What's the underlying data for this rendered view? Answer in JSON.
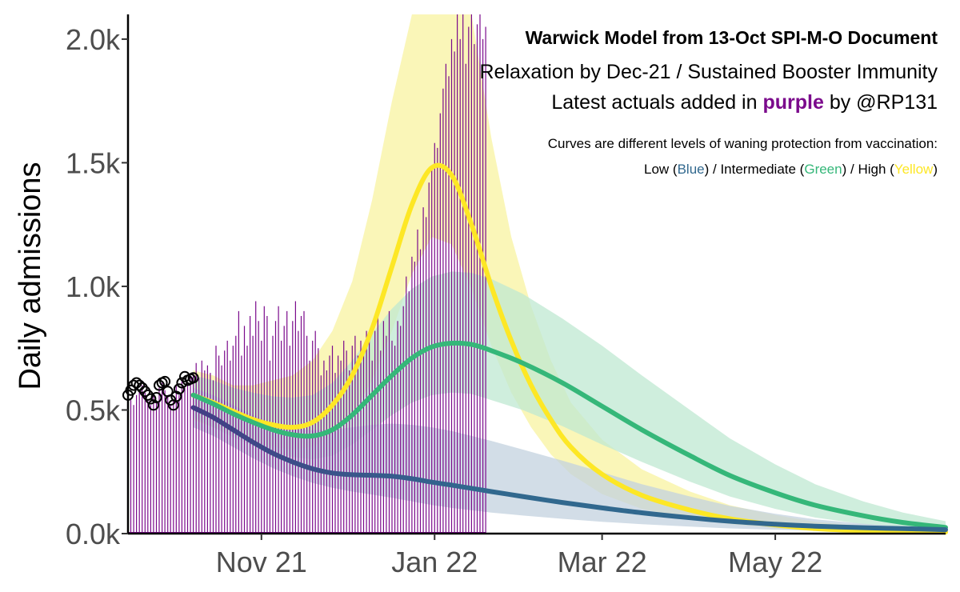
{
  "chart_data": {
    "type": "line",
    "title": "Warwick Model from 13-Oct SPI-M-O Document",
    "subtitle": "Relaxation by Dec-21 / Sustained Booster Immunity",
    "latest_note": {
      "prefix": "Latest actuals added in",
      "highlight": "purple",
      "suffix": "by @RP131"
    },
    "curves_note": "Curves are different levels of waning protection from vaccination:",
    "legend": {
      "low": "Low (",
      "low_word": "Blue",
      "low_close": ") / ",
      "mid": "Intermediate (",
      "mid_word": "Green",
      "mid_close": ") / ",
      "high": "High (",
      "high_word": "Yellow",
      "high_close": ")"
    },
    "xlabel": "",
    "ylabel": "Daily admissions",
    "ylim": [
      0,
      2100
    ],
    "yticks": [
      0,
      500,
      1000,
      1500,
      2000
    ],
    "ytick_labels": [
      "0.0k",
      "0.5k",
      "1.0k",
      "1.5k",
      "2.0k"
    ],
    "x_range": [
      "2021-09-15",
      "2022-06-30"
    ],
    "xticks": [
      "2021-11-01",
      "2022-01-01",
      "2022-03-01",
      "2022-05-01"
    ],
    "xtick_labels": [
      "Nov 21",
      "Jan 22",
      "Mar 22",
      "May 22"
    ],
    "colors": {
      "high": "#fde725",
      "high_band": "#f8f3a0",
      "mid": "#35b779",
      "mid_band": "#bfe8d2",
      "low": "#31688e",
      "low_band": "#c3d2df",
      "low_early": "#433e85",
      "actual": "#7b0a8c",
      "obs": "#000000"
    },
    "series": [
      {
        "name": "High waning (Yellow)",
        "key": "high",
        "points": [
          [
            "2021-10-08",
            560
          ],
          [
            "2021-10-15",
            530
          ],
          [
            "2021-10-22",
            495
          ],
          [
            "2021-10-29",
            462
          ],
          [
            "2021-11-05",
            440
          ],
          [
            "2021-11-12",
            430
          ],
          [
            "2021-11-19",
            450
          ],
          [
            "2021-11-26",
            520
          ],
          [
            "2021-12-03",
            640
          ],
          [
            "2021-12-10",
            830
          ],
          [
            "2021-12-17",
            1080
          ],
          [
            "2021-12-24",
            1330
          ],
          [
            "2021-12-31",
            1480
          ],
          [
            "2022-01-07",
            1450
          ],
          [
            "2022-01-14",
            1250
          ],
          [
            "2022-01-21",
            1000
          ],
          [
            "2022-01-28",
            780
          ],
          [
            "2022-02-04",
            600
          ],
          [
            "2022-02-11",
            460
          ],
          [
            "2022-02-18",
            350
          ],
          [
            "2022-03-01",
            240
          ],
          [
            "2022-03-15",
            155
          ],
          [
            "2022-04-01",
            95
          ],
          [
            "2022-04-15",
            60
          ],
          [
            "2022-05-01",
            35
          ],
          [
            "2022-05-15",
            20
          ],
          [
            "2022-06-01",
            12
          ],
          [
            "2022-06-30",
            6
          ]
        ],
        "band": [
          [
            "2021-10-08",
            460,
            660
          ],
          [
            "2021-10-15",
            430,
            640
          ],
          [
            "2021-10-22",
            400,
            600
          ],
          [
            "2021-10-29",
            375,
            600
          ],
          [
            "2021-11-05",
            350,
            620
          ],
          [
            "2021-11-12",
            340,
            640
          ],
          [
            "2021-11-19",
            350,
            700
          ],
          [
            "2021-11-26",
            400,
            820
          ],
          [
            "2021-12-03",
            480,
            1020
          ],
          [
            "2021-12-10",
            620,
            1350
          ],
          [
            "2021-12-17",
            820,
            1750
          ],
          [
            "2021-12-24",
            1050,
            2100
          ],
          [
            "2021-12-31",
            1200,
            2100
          ],
          [
            "2022-01-07",
            1170,
            2100
          ],
          [
            "2022-01-14",
            990,
            2100
          ],
          [
            "2022-01-21",
            760,
            1600
          ],
          [
            "2022-01-28",
            570,
            1200
          ],
          [
            "2022-02-04",
            430,
            920
          ],
          [
            "2022-02-11",
            320,
            700
          ],
          [
            "2022-02-18",
            240,
            530
          ],
          [
            "2022-03-01",
            160,
            380
          ],
          [
            "2022-03-15",
            100,
            260
          ],
          [
            "2022-04-01",
            60,
            170
          ],
          [
            "2022-04-15",
            38,
            115
          ],
          [
            "2022-05-01",
            22,
            75
          ],
          [
            "2022-05-15",
            13,
            48
          ],
          [
            "2022-06-01",
            7,
            30
          ],
          [
            "2022-06-30",
            3,
            15
          ]
        ]
      },
      {
        "name": "Intermediate waning (Green)",
        "key": "mid",
        "points": [
          [
            "2021-10-08",
            560
          ],
          [
            "2021-10-15",
            525
          ],
          [
            "2021-10-22",
            485
          ],
          [
            "2021-10-29",
            450
          ],
          [
            "2021-11-05",
            420
          ],
          [
            "2021-11-12",
            400
          ],
          [
            "2021-11-19",
            395
          ],
          [
            "2021-11-26",
            420
          ],
          [
            "2021-12-03",
            480
          ],
          [
            "2021-12-10",
            560
          ],
          [
            "2021-12-17",
            640
          ],
          [
            "2021-12-24",
            710
          ],
          [
            "2021-12-31",
            755
          ],
          [
            "2022-01-07",
            770
          ],
          [
            "2022-01-14",
            765
          ],
          [
            "2022-01-21",
            740
          ],
          [
            "2022-02-01",
            690
          ],
          [
            "2022-02-15",
            610
          ],
          [
            "2022-03-01",
            515
          ],
          [
            "2022-03-15",
            420
          ],
          [
            "2022-04-01",
            315
          ],
          [
            "2022-04-15",
            235
          ],
          [
            "2022-05-01",
            165
          ],
          [
            "2022-05-15",
            115
          ],
          [
            "2022-06-01",
            72
          ],
          [
            "2022-06-15",
            45
          ],
          [
            "2022-06-30",
            25
          ]
        ],
        "band": [
          [
            "2021-10-08",
            470,
            640
          ],
          [
            "2021-10-15",
            430,
            620
          ],
          [
            "2021-10-22",
            390,
            590
          ],
          [
            "2021-10-29",
            355,
            570
          ],
          [
            "2021-11-05",
            330,
            555
          ],
          [
            "2021-11-12",
            310,
            550
          ],
          [
            "2021-11-19",
            300,
            560
          ],
          [
            "2021-11-26",
            315,
            610
          ],
          [
            "2021-12-03",
            360,
            700
          ],
          [
            "2021-12-10",
            420,
            810
          ],
          [
            "2021-12-17",
            480,
            910
          ],
          [
            "2021-12-24",
            530,
            990
          ],
          [
            "2021-12-31",
            560,
            1040
          ],
          [
            "2022-01-07",
            570,
            1060
          ],
          [
            "2022-01-14",
            565,
            1055
          ],
          [
            "2022-01-21",
            540,
            1030
          ],
          [
            "2022-02-01",
            500,
            970
          ],
          [
            "2022-02-15",
            435,
            870
          ],
          [
            "2022-03-01",
            360,
            760
          ],
          [
            "2022-03-15",
            290,
            640
          ],
          [
            "2022-04-01",
            210,
            500
          ],
          [
            "2022-04-15",
            150,
            385
          ],
          [
            "2022-05-01",
            100,
            280
          ],
          [
            "2022-05-15",
            65,
            200
          ],
          [
            "2022-06-01",
            38,
            130
          ],
          [
            "2022-06-15",
            22,
            85
          ],
          [
            "2022-06-30",
            12,
            50
          ]
        ]
      },
      {
        "name": "Low waning (Blue)",
        "key": "low",
        "points": [
          [
            "2021-10-08",
            510
          ],
          [
            "2021-10-15",
            470
          ],
          [
            "2021-10-22",
            420
          ],
          [
            "2021-10-29",
            370
          ],
          [
            "2021-11-05",
            325
          ],
          [
            "2021-11-12",
            290
          ],
          [
            "2021-11-19",
            262
          ],
          [
            "2021-11-26",
            245
          ],
          [
            "2021-12-03",
            238
          ],
          [
            "2021-12-10",
            236
          ],
          [
            "2021-12-17",
            232
          ],
          [
            "2021-12-24",
            222
          ],
          [
            "2021-12-31",
            208
          ],
          [
            "2022-01-07",
            196
          ],
          [
            "2022-01-14",
            183
          ],
          [
            "2022-01-21",
            170
          ],
          [
            "2022-02-01",
            150
          ],
          [
            "2022-02-15",
            126
          ],
          [
            "2022-03-01",
            104
          ],
          [
            "2022-03-15",
            84
          ],
          [
            "2022-04-01",
            64
          ],
          [
            "2022-04-15",
            50
          ],
          [
            "2022-05-01",
            38
          ],
          [
            "2022-05-15",
            30
          ],
          [
            "2022-06-01",
            24
          ],
          [
            "2022-06-15",
            20
          ],
          [
            "2022-06-30",
            16
          ]
        ],
        "band": [
          [
            "2021-10-08",
            430,
            590
          ],
          [
            "2021-10-15",
            395,
            560
          ],
          [
            "2021-10-22",
            350,
            520
          ],
          [
            "2021-10-29",
            305,
            480
          ],
          [
            "2021-11-05",
            265,
            445
          ],
          [
            "2021-11-12",
            232,
            425
          ],
          [
            "2021-11-19",
            205,
            418
          ],
          [
            "2021-11-26",
            185,
            420
          ],
          [
            "2021-12-03",
            170,
            430
          ],
          [
            "2021-12-10",
            158,
            440
          ],
          [
            "2021-12-17",
            145,
            445
          ],
          [
            "2021-12-24",
            130,
            440
          ],
          [
            "2021-12-31",
            116,
            430
          ],
          [
            "2022-01-07",
            104,
            415
          ],
          [
            "2022-01-14",
            94,
            395
          ],
          [
            "2022-01-21",
            85,
            375
          ],
          [
            "2022-02-01",
            73,
            340
          ],
          [
            "2022-02-15",
            60,
            295
          ],
          [
            "2022-03-01",
            48,
            248
          ],
          [
            "2022-03-15",
            38,
            200
          ],
          [
            "2022-04-01",
            28,
            150
          ],
          [
            "2022-04-15",
            21,
            112
          ],
          [
            "2022-05-01",
            16,
            80
          ],
          [
            "2022-05-15",
            12,
            58
          ],
          [
            "2022-06-01",
            9,
            40
          ],
          [
            "2022-06-15",
            7,
            30
          ],
          [
            "2022-06-30",
            5,
            22
          ]
        ]
      }
    ],
    "observed_circles": [
      [
        "2021-09-15",
        560
      ],
      [
        "2021-09-16",
        580
      ],
      [
        "2021-09-17",
        600
      ],
      [
        "2021-09-18",
        610
      ],
      [
        "2021-09-19",
        600
      ],
      [
        "2021-09-20",
        590
      ],
      [
        "2021-09-21",
        575
      ],
      [
        "2021-09-22",
        560
      ],
      [
        "2021-09-23",
        545
      ],
      [
        "2021-09-24",
        520
      ],
      [
        "2021-09-25",
        550
      ],
      [
        "2021-09-26",
        600
      ],
      [
        "2021-09-27",
        610
      ],
      [
        "2021-09-28",
        615
      ],
      [
        "2021-09-29",
        575
      ],
      [
        "2021-09-30",
        540
      ],
      [
        "2021-10-01",
        520
      ],
      [
        "2021-10-02",
        555
      ],
      [
        "2021-10-03",
        585
      ],
      [
        "2021-10-04",
        610
      ],
      [
        "2021-10-05",
        635
      ],
      [
        "2021-10-06",
        620
      ],
      [
        "2021-10-07",
        625
      ],
      [
        "2021-10-08",
        630
      ]
    ],
    "actuals": {
      "name": "Latest actuals (purple)",
      "start": "2021-09-15",
      "values": [
        500,
        540,
        520,
        560,
        580,
        600,
        570,
        540,
        520,
        560,
        530,
        590,
        610,
        580,
        560,
        520,
        540,
        600,
        560,
        620,
        590,
        610,
        640,
        650,
        690,
        630,
        700,
        660,
        680,
        650,
        620,
        760,
        720,
        680,
        740,
        780,
        700,
        760,
        800,
        900,
        720,
        840,
        760,
        880,
        800,
        940,
        860,
        780,
        920,
        880,
        700,
        800,
        860,
        920,
        780,
        840,
        900,
        760,
        860,
        940,
        820,
        880,
        900,
        800,
        700,
        780,
        820,
        750,
        640,
        700,
        660,
        720,
        760,
        650,
        720,
        700,
        780,
        740,
        660,
        760,
        800,
        720,
        780,
        760,
        820,
        790,
        700,
        820,
        880,
        740,
        860,
        800,
        900,
        780,
        760,
        860,
        840,
        920,
        1040,
        980,
        1120,
        1100,
        1230,
        1150,
        1320,
        1280,
        1420,
        1480,
        1580,
        1560,
        1700,
        1800,
        1900,
        1850,
        2000,
        1950,
        2100,
        2000,
        2100,
        1900,
        2050,
        2100,
        1980,
        2060,
        2100,
        2000,
        2050
      ]
    }
  }
}
